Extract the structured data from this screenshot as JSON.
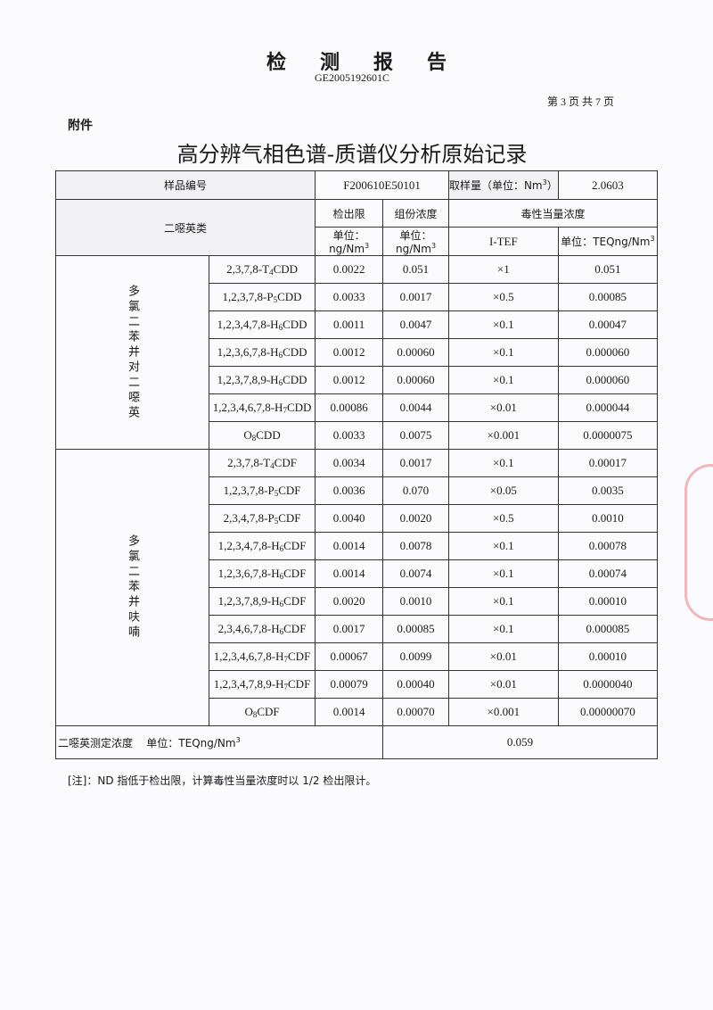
{
  "header": {
    "title": "检测报告",
    "report_code": "GE2005192601C",
    "page_info": "第 3 页 共 7 页",
    "attachment_label": "附件",
    "main_title": "高分辨气相色谱-质谱仪分析原始记录"
  },
  "sample": {
    "id_label": "样品编号",
    "id_value": "F200610E50101",
    "volume_label": "取样量（单位：Nm",
    "volume_label_sup": "3",
    "volume_label_end": "）",
    "volume_value": "2.0603"
  },
  "columns": {
    "class": "二噁英类",
    "lod": "检出限",
    "conc": "组份浓度",
    "teq": "毒性当量浓度",
    "lod_unit": "单位：ng/Nm",
    "conc_unit": "单位：ng/Nm",
    "tef": "I-TEF",
    "teq_unit": "单位：TEQng/Nm",
    "unit_sup": "3"
  },
  "groups": [
    {
      "label": "多氯二苯并对二噁英",
      "rows": [
        {
          "pre": "2,3,7,8-T",
          "sub": "4",
          "post": "CDD",
          "lod": "0.0022",
          "conc": "0.051",
          "tef": "×1",
          "teq": "0.051"
        },
        {
          "pre": "1,2,3,7,8-P",
          "sub": "5",
          "post": "CDD",
          "lod": "0.0033",
          "conc": "0.0017",
          "tef": "×0.5",
          "teq": "0.00085"
        },
        {
          "pre": "1,2,3,4,7,8-H",
          "sub": "6",
          "post": "CDD",
          "lod": "0.0011",
          "conc": "0.0047",
          "tef": "×0.1",
          "teq": "0.00047"
        },
        {
          "pre": "1,2,3,6,7,8-H",
          "sub": "6",
          "post": "CDD",
          "lod": "0.0012",
          "conc": "0.00060",
          "tef": "×0.1",
          "teq": "0.000060"
        },
        {
          "pre": "1,2,3,7,8,9-H",
          "sub": "6",
          "post": "CDD",
          "lod": "0.0012",
          "conc": "0.00060",
          "tef": "×0.1",
          "teq": "0.000060"
        },
        {
          "pre": "1,2,3,4,6,7,8-H",
          "sub": "7",
          "post": "CDD",
          "lod": "0.00086",
          "conc": "0.0044",
          "tef": "×0.01",
          "teq": "0.000044"
        },
        {
          "pre": "O",
          "sub": "8",
          "post": "CDD",
          "lod": "0.0033",
          "conc": "0.0075",
          "tef": "×0.001",
          "teq": "0.0000075"
        }
      ]
    },
    {
      "label": "多氯二苯并呋喃",
      "rows": [
        {
          "pre": "2,3,7,8-T",
          "sub": "4",
          "post": "CDF",
          "lod": "0.0034",
          "conc": "0.0017",
          "tef": "×0.1",
          "teq": "0.00017"
        },
        {
          "pre": "1,2,3,7,8-P",
          "sub": "5",
          "post": "CDF",
          "lod": "0.0036",
          "conc": "0.070",
          "tef": "×0.05",
          "teq": "0.0035"
        },
        {
          "pre": "2,3,4,7,8-P",
          "sub": "5",
          "post": "CDF",
          "lod": "0.0040",
          "conc": "0.0020",
          "tef": "×0.5",
          "teq": "0.0010"
        },
        {
          "pre": "1,2,3,4,7,8-H",
          "sub": "6",
          "post": "CDF",
          "lod": "0.0014",
          "conc": "0.0078",
          "tef": "×0.1",
          "teq": "0.00078"
        },
        {
          "pre": "1,2,3,6,7,8-H",
          "sub": "6",
          "post": "CDF",
          "lod": "0.0014",
          "conc": "0.0074",
          "tef": "×0.1",
          "teq": "0.00074"
        },
        {
          "pre": "1,2,3,7,8,9-H",
          "sub": "6",
          "post": "CDF",
          "lod": "0.0020",
          "conc": "0.0010",
          "tef": "×0.1",
          "teq": "0.00010"
        },
        {
          "pre": "2,3,4,6,7,8-H",
          "sub": "6",
          "post": "CDF",
          "lod": "0.0017",
          "conc": "0.00085",
          "tef": "×0.1",
          "teq": "0.000085"
        },
        {
          "pre": "1,2,3,4,6,7,8-H",
          "sub": "7",
          "post": "CDF",
          "lod": "0.00067",
          "conc": "0.0099",
          "tef": "×0.01",
          "teq": "0.00010"
        },
        {
          "pre": "1,2,3,4,7,8,9-H",
          "sub": "7",
          "post": "CDF",
          "lod": "0.00079",
          "conc": "0.00040",
          "tef": "×0.01",
          "teq": "0.0000040"
        },
        {
          "pre": "O",
          "sub": "8",
          "post": "CDF",
          "lod": "0.0014",
          "conc": "0.00070",
          "tef": "×0.001",
          "teq": "0.00000070"
        }
      ]
    }
  ],
  "summary": {
    "label": "二噁英测定浓度",
    "unit": "单位：TEQng/Nm",
    "unit_sup": "3",
    "value": "0.059"
  },
  "note": "[注]：ND 指低于检出限，计算毒性当量浓度时以 1/2 检出限计。",
  "colors": {
    "ink": "#1a1a1a",
    "stamp": "#dc3c46",
    "paper": "#fbfbfd"
  }
}
